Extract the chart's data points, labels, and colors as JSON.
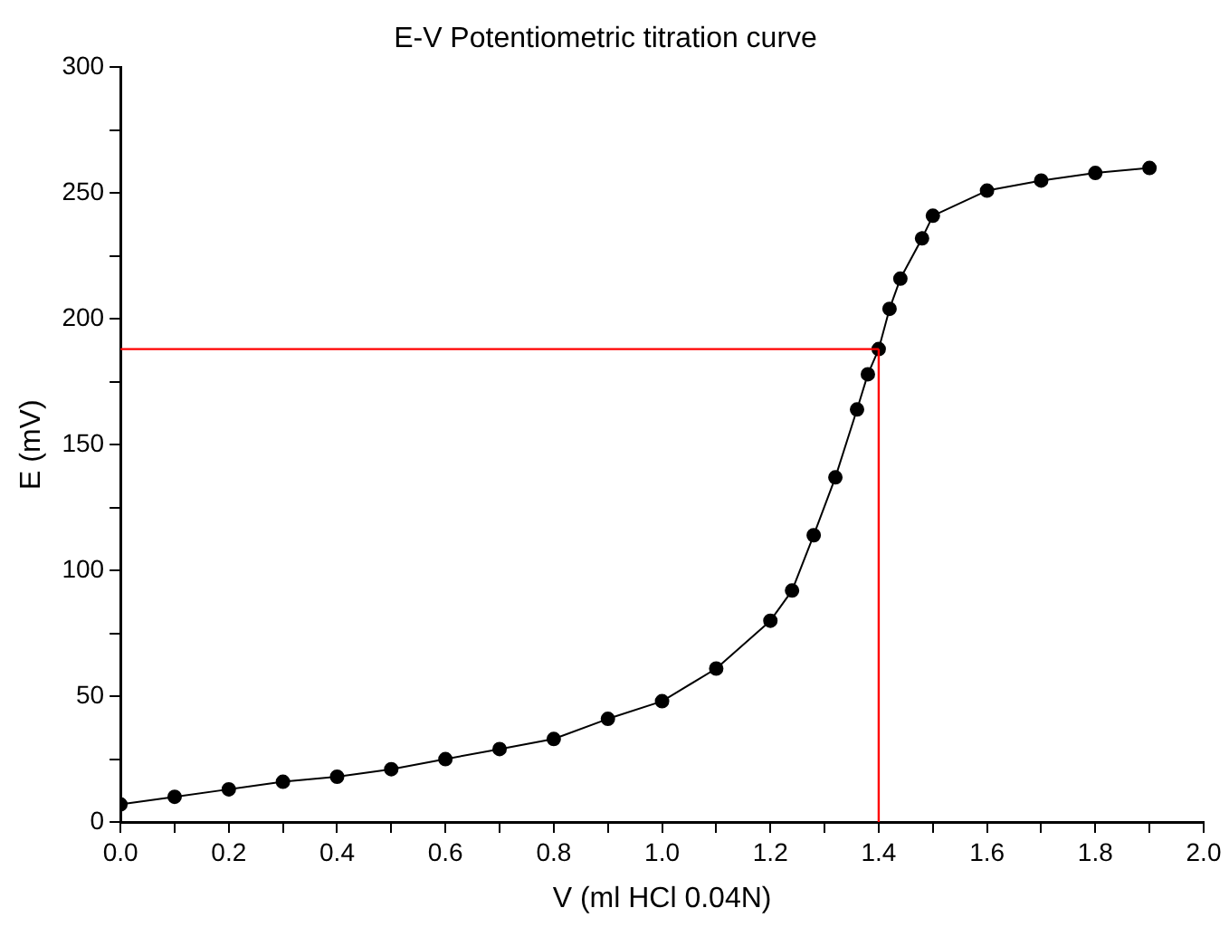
{
  "chart_data": {
    "type": "line",
    "title": "E-V Potentiometric titration curve",
    "xlabel": "V (ml HCl 0.04N)",
    "ylabel": "E (mV)",
    "x": [
      0,
      0.1,
      0.2,
      0.3,
      0.4,
      0.5,
      0.6,
      0.7,
      0.8,
      0.9,
      1.0,
      1.1,
      1.2,
      1.24,
      1.28,
      1.32,
      1.36,
      1.38,
      1.4,
      1.42,
      1.44,
      1.48,
      1.5,
      1.6,
      1.7,
      1.8,
      1.9
    ],
    "series": [
      {
        "color": "#000000",
        "values": [
          7,
          10,
          13,
          16,
          18,
          21,
          25,
          29,
          33,
          41,
          48,
          61,
          80,
          92,
          114,
          137,
          164,
          178,
          188,
          204,
          216,
          232,
          241,
          251,
          255,
          258,
          260
        ]
      }
    ],
    "marker": "circle",
    "line_style": "solid",
    "grid": false,
    "legend": false,
    "xlim": [
      0,
      2.0
    ],
    "xticks": [
      {
        "value": 0,
        "label": "0.0"
      },
      {
        "value": 0.1,
        "label": null
      },
      0.2,
      {
        "value": 0.3,
        "label": null
      },
      0.4,
      {
        "value": 0.5,
        "label": null
      },
      0.6,
      {
        "value": 0.7,
        "label": null
      },
      0.8,
      {
        "value": 0.9,
        "label": null
      },
      {
        "value": 1.0,
        "label": "1.0"
      },
      {
        "value": 1.1,
        "label": null
      },
      1.2,
      {
        "value": 1.3,
        "label": null
      },
      1.4,
      {
        "value": 1.5,
        "label": null
      },
      1.6,
      {
        "value": 1.7,
        "label": null
      },
      1.8,
      {
        "value": 1.9,
        "label": null
      },
      {
        "value": 2.0,
        "label": "2.0"
      }
    ],
    "ylim": [
      0,
      300
    ],
    "yticks": [
      0,
      {
        "value": 25,
        "label": null
      },
      50,
      {
        "value": 75,
        "label": null
      },
      100,
      {
        "value": 125,
        "label": null
      },
      150,
      {
        "value": 175,
        "label": null
      },
      200,
      {
        "value": 225,
        "label": null
      },
      250,
      {
        "value": 275,
        "label": null
      },
      300
    ],
    "ref_lines": [
      {
        "axis": "y",
        "value": 188,
        "color": "#ff0000"
      },
      {
        "axis": "x",
        "value": 1.4,
        "color": "#ff0000"
      }
    ]
  }
}
